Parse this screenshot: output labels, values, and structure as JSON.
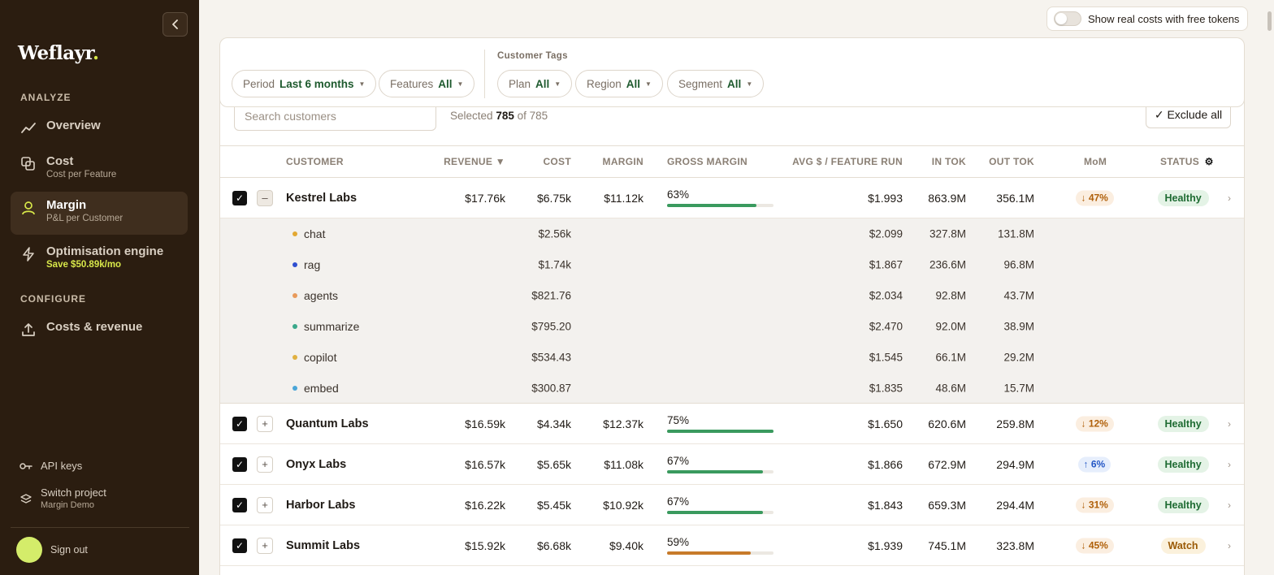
{
  "sidebar": {
    "logo": "Weflayr",
    "logo_dot": ".",
    "sections": {
      "analyze": "ANALYZE",
      "configure": "CONFIGURE"
    },
    "nav": {
      "overview": {
        "label": "Overview"
      },
      "cost": {
        "label": "Cost",
        "sub": "Cost per Feature"
      },
      "margin": {
        "label": "Margin",
        "sub": "P&L per Customer"
      },
      "optim": {
        "label": "Optimisation engine",
        "sub": "Save $50.89k/mo"
      },
      "costs_revenue": {
        "label": "Costs & revenue"
      }
    },
    "api_keys": "API keys",
    "switch_project": {
      "label": "Switch project",
      "sub": "Margin Demo"
    },
    "sign_out": "Sign out"
  },
  "topbar": {
    "toggle_label": "Show real costs with free tokens"
  },
  "filters": {
    "period": {
      "key": "Period",
      "value": "Last 6 months"
    },
    "features": {
      "key": "Features",
      "value": "All"
    },
    "tags_title": "Customer Tags",
    "plan": {
      "key": "Plan",
      "value": "All"
    },
    "region": {
      "key": "Region",
      "value": "All"
    },
    "segment": {
      "key": "Segment",
      "value": "All"
    }
  },
  "table": {
    "search_placeholder": "Search customers",
    "selected_prefix": "Selected",
    "selected_count": "785",
    "selected_suffix": "of 785",
    "exclude_all": "✓ Exclude all",
    "headers": {
      "customer": "CUSTOMER",
      "revenue": "REVENUE ▼",
      "cost": "COST",
      "margin": "MARGIN",
      "gross_margin": "GROSS MARGIN",
      "avg": "AVG $ / FEATURE RUN",
      "in_tok": "IN TOK",
      "out_tok": "OUT TOK",
      "mom": "MoM",
      "status": "STATUS"
    },
    "rows": [
      {
        "name": "Kestrel Labs",
        "revenue": "$17.76k",
        "cost": "$6.75k",
        "margin": "$11.12k",
        "gm": "63%",
        "gm_value": 0.84,
        "gm_color": "#3a9a5e",
        "avg": "$1.993",
        "in_tok": "863.9M",
        "out_tok": "356.1M",
        "mom": "↓ 47%",
        "mom_dir": "down",
        "status": "Healthy",
        "status_kind": "healthy",
        "expanded": true
      },
      {
        "name": "Quantum Labs",
        "revenue": "$16.59k",
        "cost": "$4.34k",
        "margin": "$12.37k",
        "gm": "75%",
        "gm_value": 1.0,
        "gm_color": "#3a9a5e",
        "avg": "$1.650",
        "in_tok": "620.6M",
        "out_tok": "259.8M",
        "mom": "↓ 12%",
        "mom_dir": "down",
        "status": "Healthy",
        "status_kind": "healthy"
      },
      {
        "name": "Onyx Labs",
        "revenue": "$16.57k",
        "cost": "$5.65k",
        "margin": "$11.08k",
        "gm": "67%",
        "gm_value": 0.9,
        "gm_color": "#3a9a5e",
        "avg": "$1.866",
        "in_tok": "672.9M",
        "out_tok": "294.9M",
        "mom": "↑ 6%",
        "mom_dir": "up",
        "status": "Healthy",
        "status_kind": "healthy"
      },
      {
        "name": "Harbor Labs",
        "revenue": "$16.22k",
        "cost": "$5.45k",
        "margin": "$10.92k",
        "gm": "67%",
        "gm_value": 0.9,
        "gm_color": "#3a9a5e",
        "avg": "$1.843",
        "in_tok": "659.3M",
        "out_tok": "294.4M",
        "mom": "↓ 31%",
        "mom_dir": "down",
        "status": "Healthy",
        "status_kind": "healthy"
      },
      {
        "name": "Summit Labs",
        "revenue": "$15.92k",
        "cost": "$6.68k",
        "margin": "$9.40k",
        "gm": "59%",
        "gm_value": 0.79,
        "gm_color": "#c77a2a",
        "avg": "$1.939",
        "in_tok": "745.1M",
        "out_tok": "323.8M",
        "mom": "↓ 45%",
        "mom_dir": "down",
        "status": "Watch",
        "status_kind": "watch"
      }
    ],
    "features": [
      {
        "name": "chat",
        "color": "#e2a832",
        "cost": "$2.56k",
        "avg": "$2.099",
        "in_tok": "327.8M",
        "out_tok": "131.8M"
      },
      {
        "name": "rag",
        "color": "#2f4fd0",
        "cost": "$1.74k",
        "avg": "$1.867",
        "in_tok": "236.6M",
        "out_tok": "96.8M"
      },
      {
        "name": "agents",
        "color": "#e89a5a",
        "cost": "$821.76",
        "avg": "$2.034",
        "in_tok": "92.8M",
        "out_tok": "43.7M"
      },
      {
        "name": "summarize",
        "color": "#3aa88a",
        "cost": "$795.20",
        "avg": "$2.470",
        "in_tok": "92.0M",
        "out_tok": "38.9M"
      },
      {
        "name": "copilot",
        "color": "#e0b040",
        "cost": "$534.43",
        "avg": "$1.545",
        "in_tok": "66.1M",
        "out_tok": "29.2M"
      },
      {
        "name": "embed",
        "color": "#4aa6d8",
        "cost": "$300.87",
        "avg": "$1.835",
        "in_tok": "48.6M",
        "out_tok": "15.7M"
      }
    ]
  }
}
